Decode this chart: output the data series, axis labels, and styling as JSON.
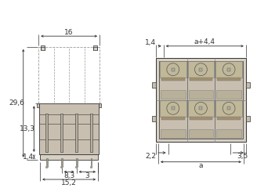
{
  "bg_color": "#ffffff",
  "line_color": "#333333",
  "dim_color": "#333333",
  "body_fill": "#d6cfc4",
  "body_fill2": "#c8bfb0",
  "pin_fill": "#b8b0a0",
  "pin_fill2": "#a0998a",
  "dashed_color": "#999999",
  "font_size": 6.5,
  "dims_left": {
    "29_6": "29,6",
    "13_3": "13,3",
    "1_4b": "1,4",
    "16": "16",
    "8_3": "8,3",
    "3": "3",
    "15_2": "15,2"
  },
  "dims_right": {
    "1_4": "1,4",
    "a_4_4": "a+4,4",
    "2_2": "2,2",
    "3_5": "3,5",
    "a": "a"
  }
}
